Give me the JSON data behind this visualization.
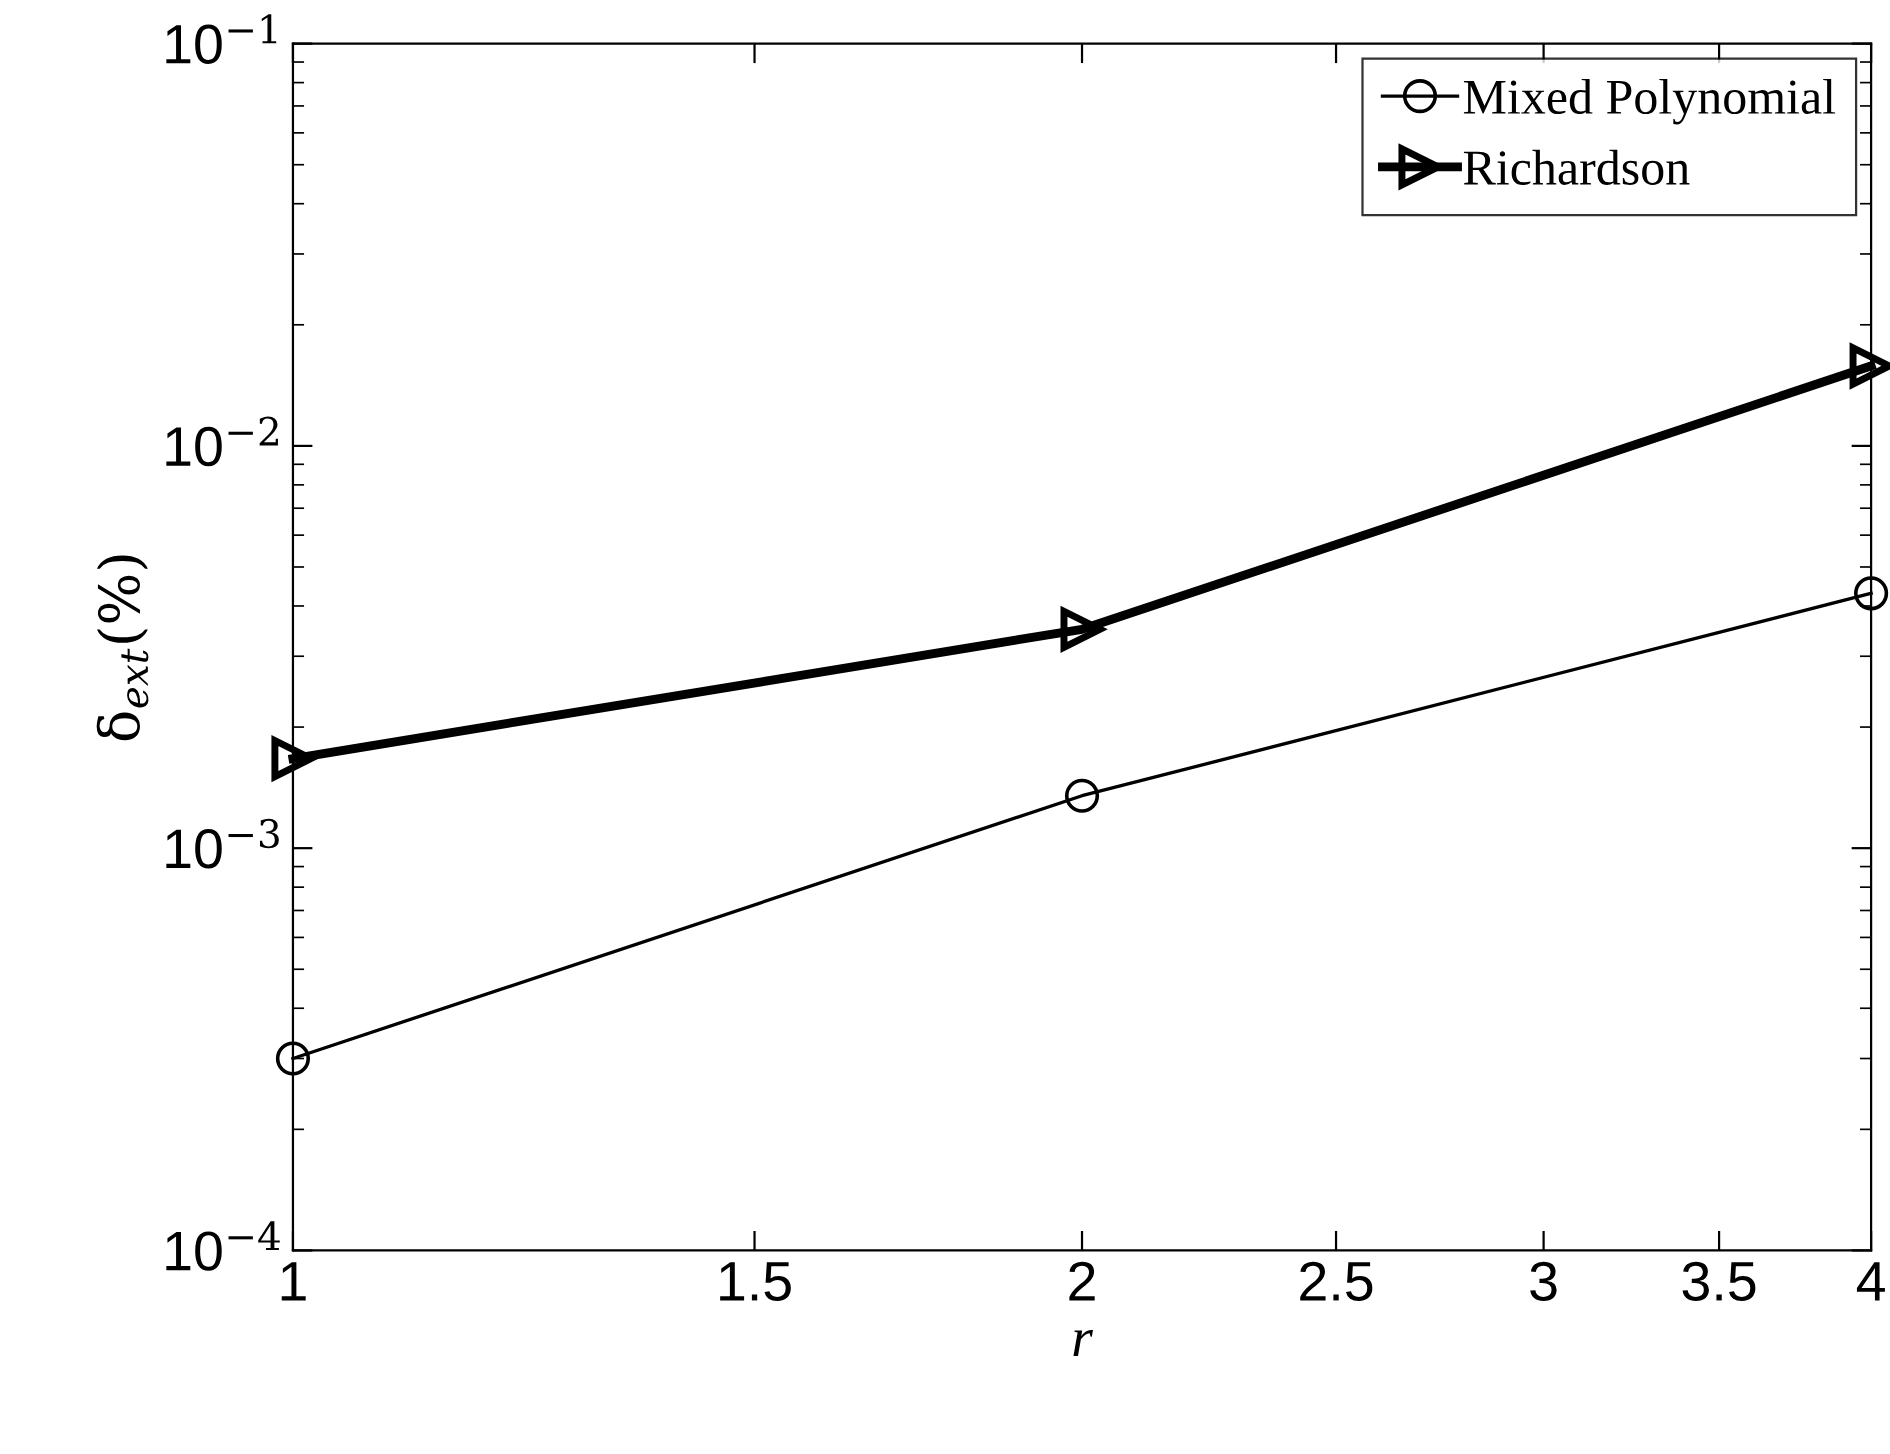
{
  "chart_data": {
    "type": "line",
    "xlabel": "r",
    "ylabel": "δ$_{ext}$(%)",
    "log": "xy",
    "x": [
      1,
      2,
      4
    ],
    "series": [
      {
        "name": "Mixed Polynomial",
        "color": "#000000",
        "marker": "circle",
        "values": [
          0.0003,
          0.00135,
          0.0043
        ]
      },
      {
        "name": "Richardson",
        "color": "#000000",
        "marker": "triangle",
        "values": [
          0.00167,
          0.0035,
          0.0158
        ]
      }
    ],
    "xlim": [
      1,
      4
    ],
    "xticks": [
      1,
      1.5,
      2,
      2.5,
      3,
      3.5,
      4
    ],
    "ylim": [
      0.0001,
      0.1
    ],
    "yticks": [
      {
        "value": 0.0001,
        "label": "10$^{−4}$"
      },
      {
        "value": 0.001,
        "label": "10$^{−3}$"
      },
      {
        "value": 0.01,
        "label": "10$^{−2}$"
      },
      {
        "value": 0.1,
        "label": "10$^{−1}$"
      }
    ],
    "legend": "top right",
    "grid": false,
    "line_style": "solid"
  }
}
